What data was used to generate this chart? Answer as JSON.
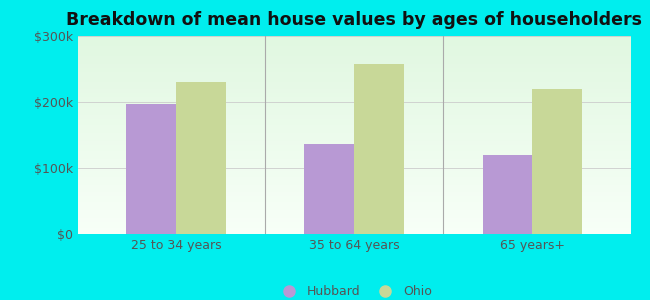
{
  "title": "Breakdown of mean house values by ages of householders",
  "categories": [
    "25 to 34 years",
    "35 to 64 years",
    "65 years+"
  ],
  "hubbard_values": [
    197000,
    137000,
    120000
  ],
  "ohio_values": [
    230000,
    258000,
    220000
  ],
  "ylim": [
    0,
    300000
  ],
  "yticks": [
    0,
    100000,
    200000,
    300000
  ],
  "ytick_labels": [
    "$0",
    "$100k",
    "$200k",
    "$300k"
  ],
  "hubbard_color": "#b899d4",
  "ohio_color": "#c8d898",
  "background_color": "#00eeee",
  "bar_width": 0.28,
  "legend_hubbard": "Hubbard",
  "legend_ohio": "Ohio",
  "title_fontsize": 12.5,
  "tick_fontsize": 9,
  "legend_fontsize": 9,
  "grid_color": "#cccccc",
  "separator_color": "#aaaaaa",
  "text_color": "#555555"
}
